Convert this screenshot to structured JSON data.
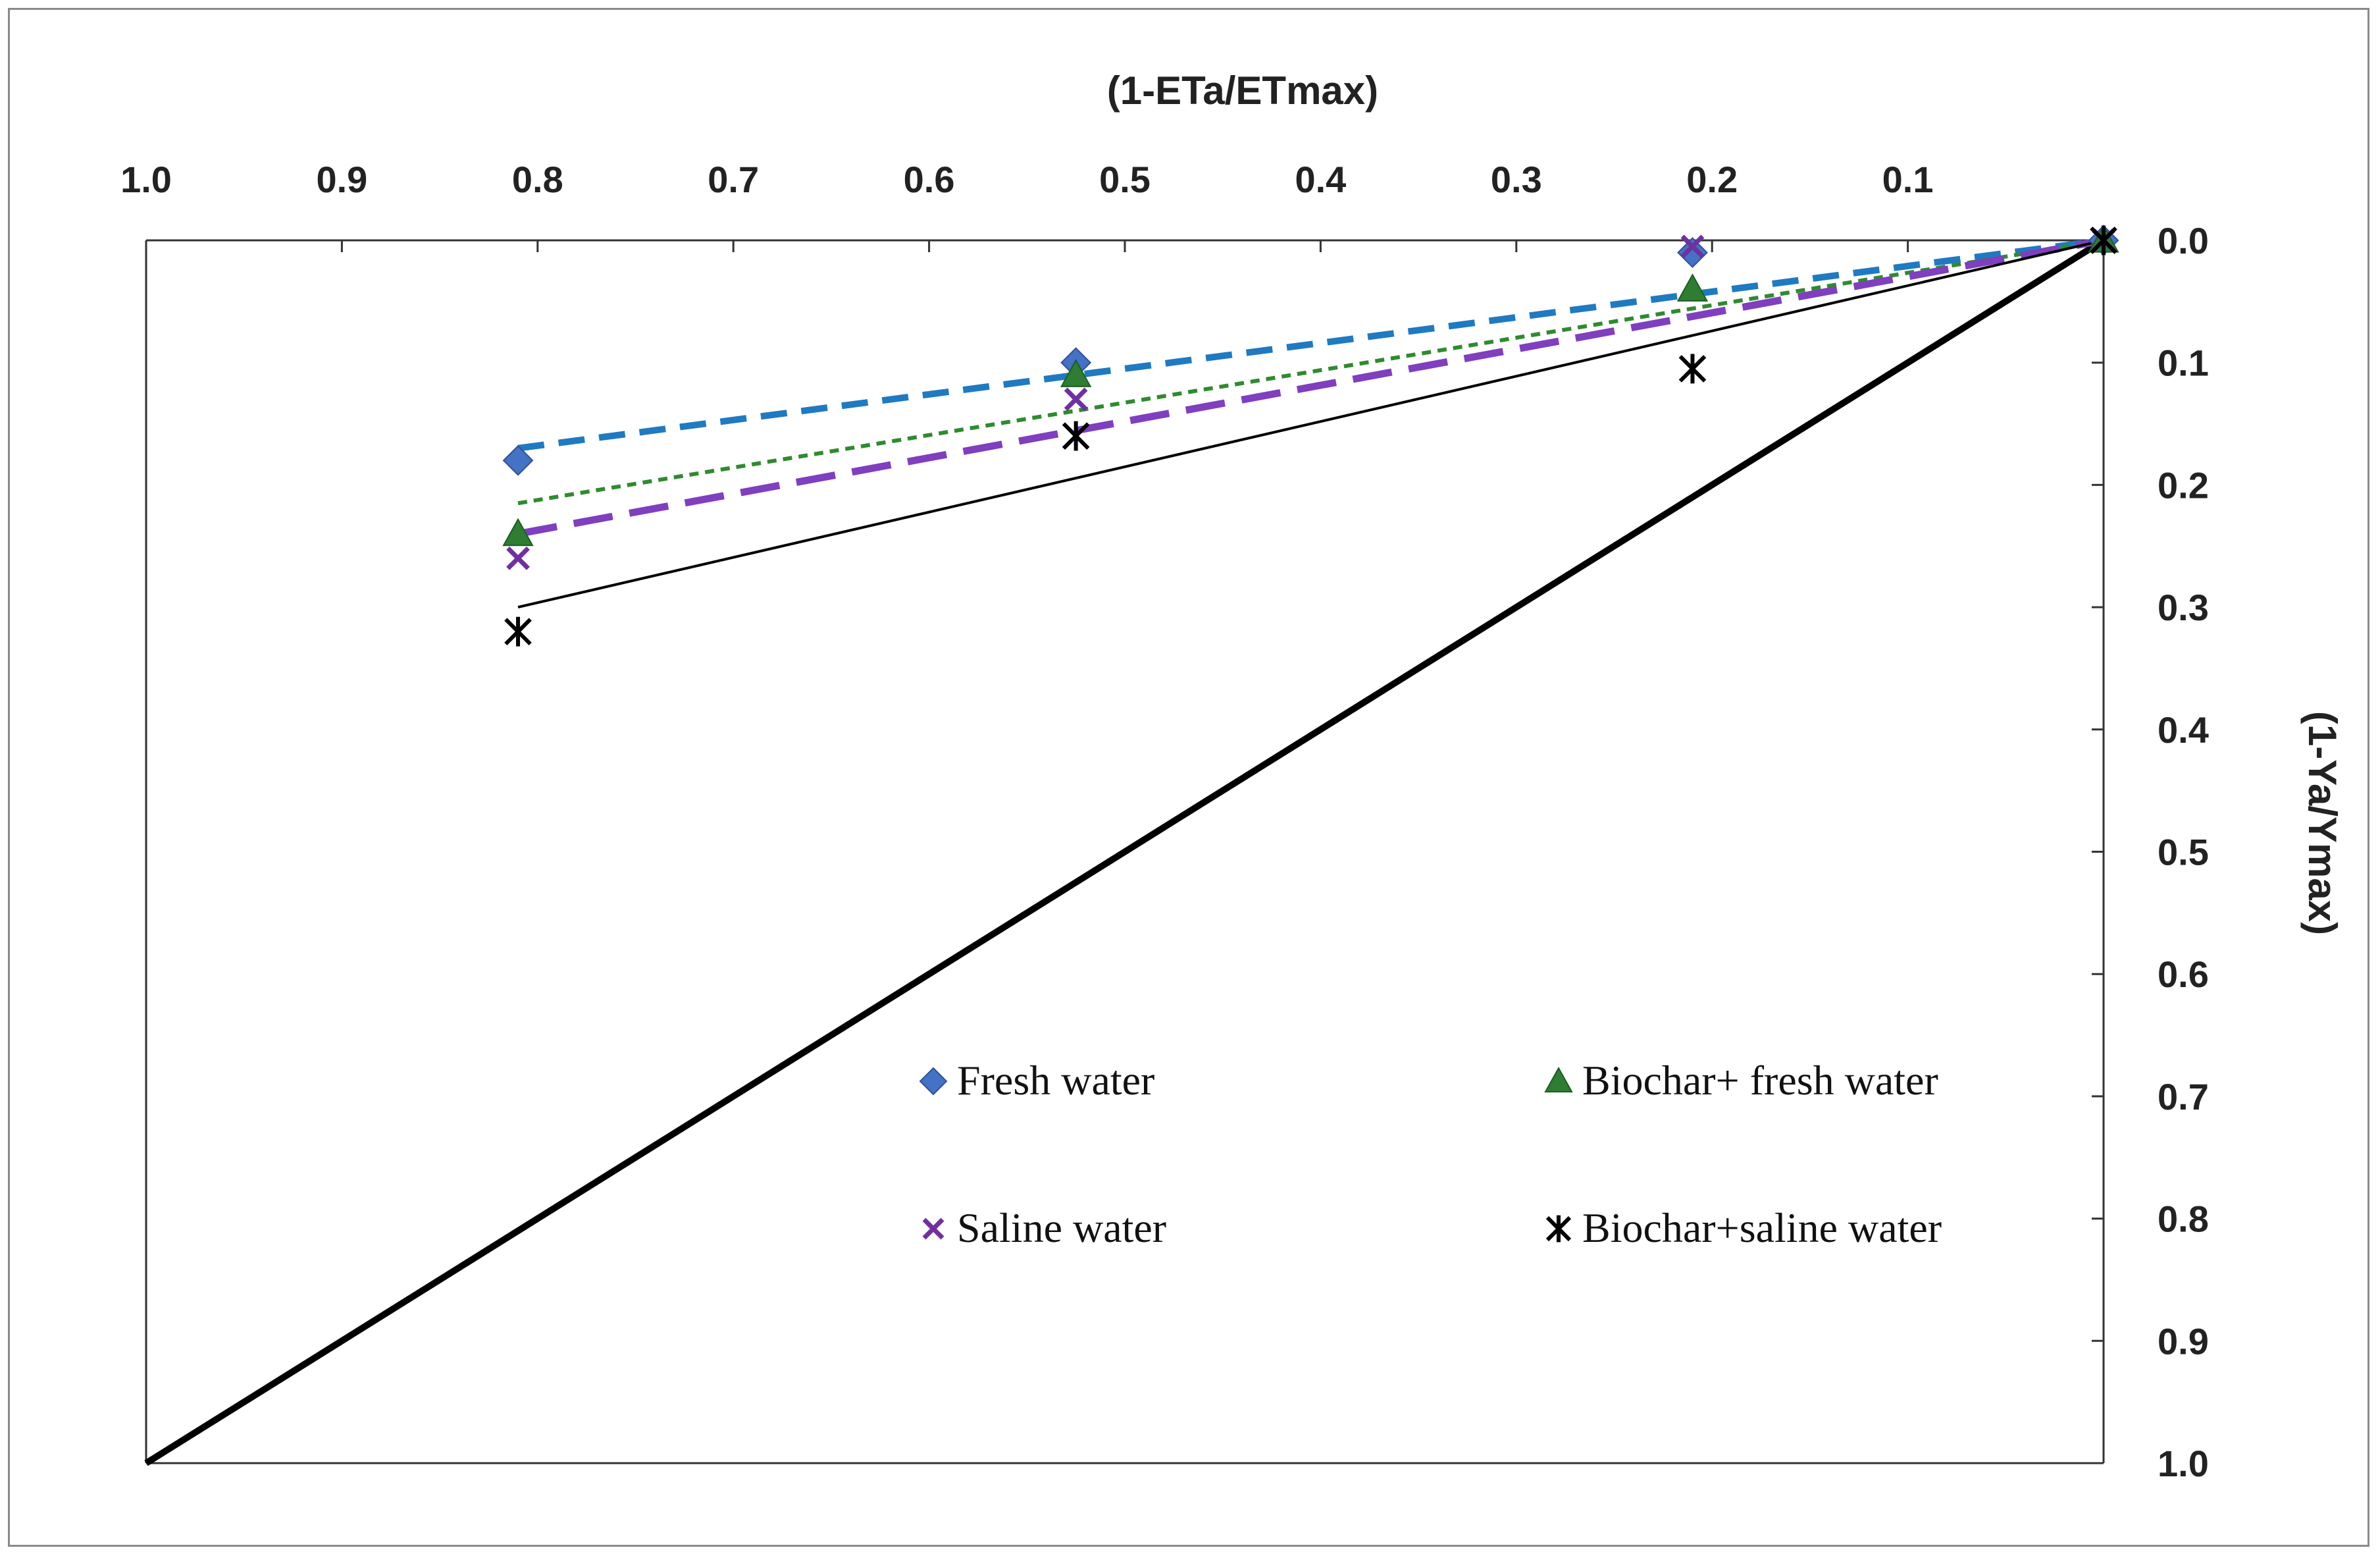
{
  "chart_data": {
    "type": "line",
    "title": "",
    "xlabel": "(1-ETa/ETmax)",
    "ylabel": "(1-Ya/Ymax)",
    "xlim": [
      1.0,
      0.0
    ],
    "ylim": [
      0.0,
      1.0
    ],
    "x_axis_position": "top",
    "y_axis_position": "right",
    "x_ticks": [
      1.0,
      0.9,
      0.8,
      0.7,
      0.6,
      0.5,
      0.4,
      0.3,
      0.2,
      0.1
    ],
    "x_tick_labels": [
      "1.0",
      "0.9",
      "0.8",
      "0.7",
      "0.6",
      "0.5",
      "0.4",
      "0.3",
      "0.2",
      "0.1"
    ],
    "y_ticks": [
      0.0,
      0.1,
      0.2,
      0.3,
      0.4,
      0.5,
      0.6,
      0.7,
      0.8,
      0.9,
      1.0
    ],
    "y_tick_labels": [
      "0.0",
      "0.1",
      "0.2",
      "0.3",
      "0.4",
      "0.5",
      "0.6",
      "0.7",
      "0.8",
      "0.9",
      "1.0"
    ],
    "grid": false,
    "legend_position": "bottom-right",
    "series": [
      {
        "name": "Fresh water",
        "marker": "diamond",
        "color": "#4472c4",
        "trend_color": "#1f7ac1",
        "trend_style": "dashed",
        "points": [
          {
            "x": 0.81,
            "y": 0.18
          },
          {
            "x": 0.525,
            "y": 0.1
          },
          {
            "x": 0.21,
            "y": 0.01
          },
          {
            "x": 0.0,
            "y": 0.0
          }
        ],
        "trend": [
          {
            "x": 0.81,
            "y": 0.17
          },
          {
            "x": 0.0,
            "y": 0.0
          }
        ]
      },
      {
        "name": "Biochar+ fresh water",
        "marker": "triangle",
        "color": "#2e7d32",
        "trend_color": "#2e8b2e",
        "trend_style": "dotted",
        "points": [
          {
            "x": 0.81,
            "y": 0.24
          },
          {
            "x": 0.525,
            "y": 0.11
          },
          {
            "x": 0.21,
            "y": 0.04
          },
          {
            "x": 0.0,
            "y": 0.0
          }
        ],
        "trend": [
          {
            "x": 0.81,
            "y": 0.215
          },
          {
            "x": 0.0,
            "y": 0.0
          }
        ]
      },
      {
        "name": "Saline water",
        "marker": "x",
        "color": "#7030a0",
        "trend_color": "#7f3fbf",
        "trend_style": "longdash",
        "points": [
          {
            "x": 0.81,
            "y": 0.26
          },
          {
            "x": 0.525,
            "y": 0.13
          },
          {
            "x": 0.21,
            "y": 0.005
          },
          {
            "x": 0.0,
            "y": 0.0
          }
        ],
        "trend": [
          {
            "x": 0.81,
            "y": 0.24
          },
          {
            "x": 0.0,
            "y": 0.0
          }
        ]
      },
      {
        "name": "Biochar+saline water",
        "marker": "asterisk",
        "color": "#000000",
        "trend_color": "#000000",
        "trend_style": "solid",
        "points": [
          {
            "x": 0.81,
            "y": 0.32
          },
          {
            "x": 0.525,
            "y": 0.16
          },
          {
            "x": 0.21,
            "y": 0.105
          },
          {
            "x": 0.0,
            "y": 0.0
          }
        ],
        "trend": [
          {
            "x": 0.81,
            "y": 0.3
          },
          {
            "x": 0.0,
            "y": 0.0
          }
        ]
      }
    ],
    "reference_line": {
      "name": "1:1 line",
      "color": "#000000",
      "points": [
        {
          "x": 1.0,
          "y": 1.0
        },
        {
          "x": 0.0,
          "y": 0.0
        }
      ]
    }
  }
}
